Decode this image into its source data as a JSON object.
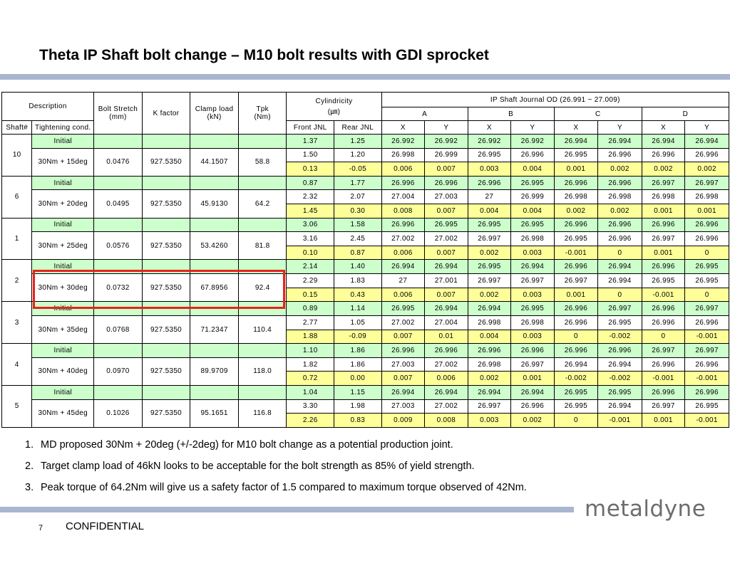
{
  "title": "Theta IP Shaft bolt change – M10 bolt results with GDI sprocket",
  "table": {
    "header": {
      "description": "Description",
      "bolt_stretch": "Bolt Stretch\n(mm)",
      "k_factor": "K factor",
      "clamp_load": "Clamp load\n(kN)",
      "tpk": "Tpk\n(Nm)",
      "cylindricity": "Cylindricity\n(㎛)",
      "journal_od": "IP Shaft Journal OD (26.991 ~ 27.009)",
      "journals": [
        "A",
        "B",
        "C",
        "D"
      ],
      "shaft_no": "Shaft#",
      "tightening_cond": "Tightening cond.",
      "front_jnl": "Front JNL",
      "rear_jnl": "Rear JNL",
      "xy": [
        "X",
        "Y",
        "X",
        "Y",
        "X",
        "Y",
        "X",
        "Y"
      ]
    },
    "groups": [
      {
        "shaft": "10",
        "initial": "Initial",
        "cond": "30Nm + 15deg",
        "stretch": "0.0476",
        "k": "927.5350",
        "clamp": "44.1507",
        "tpk": "58.8",
        "rows": [
          [
            "1.37",
            "1.25",
            "26.992",
            "26.992",
            "26.992",
            "26.992",
            "26.994",
            "26.994",
            "26.994",
            "26.994"
          ],
          [
            "1.50",
            "1.20",
            "26.998",
            "26.999",
            "26.995",
            "26.996",
            "26.995",
            "26.996",
            "26.996",
            "26.996"
          ],
          [
            "0.13",
            "-0.05",
            "0.006",
            "0.007",
            "0.003",
            "0.004",
            "0.001",
            "0.002",
            "0.002",
            "0.002"
          ]
        ]
      },
      {
        "shaft": "6",
        "initial": "Initial",
        "cond": "30Nm + 20deg",
        "stretch": "0.0495",
        "k": "927.5350",
        "clamp": "45.9130",
        "tpk": "64.2",
        "rows": [
          [
            "0.87",
            "1.77",
            "26.996",
            "26.996",
            "26.996",
            "26.995",
            "26.996",
            "26.996",
            "26.997",
            "26.997"
          ],
          [
            "2.32",
            "2.07",
            "27.004",
            "27.003",
            "27",
            "26.999",
            "26.998",
            "26.998",
            "26.998",
            "26.998"
          ],
          [
            "1.45",
            "0.30",
            "0.008",
            "0.007",
            "0.004",
            "0.004",
            "0.002",
            "0.002",
            "0.001",
            "0.001"
          ]
        ]
      },
      {
        "shaft": "1",
        "initial": "Initial",
        "cond": "30Nm + 25deg",
        "stretch": "0.0576",
        "k": "927.5350",
        "clamp": "53.4260",
        "tpk": "81.8",
        "rows": [
          [
            "3.06",
            "1.58",
            "26.996",
            "26.995",
            "26.995",
            "26.995",
            "26.996",
            "26.996",
            "26.996",
            "26.996"
          ],
          [
            "3.16",
            "2.45",
            "27.002",
            "27.002",
            "26.997",
            "26.998",
            "26.995",
            "26.996",
            "26.997",
            "26.996"
          ],
          [
            "0.10",
            "0.87",
            "0.006",
            "0.007",
            "0.002",
            "0.003",
            "-0.001",
            "0",
            "0.001",
            "0"
          ]
        ]
      },
      {
        "shaft": "2",
        "initial": "Initial",
        "cond": "30Nm + 30deg",
        "stretch": "0.0732",
        "k": "927.5350",
        "clamp": "67.8956",
        "tpk": "92.4",
        "rows": [
          [
            "2.14",
            "1.40",
            "26.994",
            "26.994",
            "26.995",
            "26.994",
            "26.996",
            "26.994",
            "26.996",
            "26.995"
          ],
          [
            "2.29",
            "1.83",
            "27",
            "27.001",
            "26.997",
            "26.997",
            "26.997",
            "26.994",
            "26.995",
            "26.995"
          ],
          [
            "0.15",
            "0.43",
            "0.006",
            "0.007",
            "0.002",
            "0.003",
            "0.001",
            "0",
            "-0.001",
            "0"
          ]
        ]
      },
      {
        "shaft": "3",
        "initial": "Initial",
        "cond": "30Nm + 35deg",
        "stretch": "0.0768",
        "k": "927.5350",
        "clamp": "71.2347",
        "tpk": "110.4",
        "rows": [
          [
            "0.89",
            "1.14",
            "26.995",
            "26.994",
            "26.994",
            "26.995",
            "26.996",
            "26.997",
            "26.996",
            "26.997"
          ],
          [
            "2.77",
            "1.05",
            "27.002",
            "27.004",
            "26.998",
            "26.998",
            "26.996",
            "26.995",
            "26.996",
            "26.996"
          ],
          [
            "1.88",
            "-0.09",
            "0.007",
            "0.01",
            "0.004",
            "0.003",
            "0",
            "-0.002",
            "0",
            "-0.001"
          ]
        ]
      },
      {
        "shaft": "4",
        "initial": "Initial",
        "cond": "30Nm + 40deg",
        "stretch": "0.0970",
        "k": "927.5350",
        "clamp": "89.9709",
        "tpk": "118.0",
        "rows": [
          [
            "1.10",
            "1.86",
            "26.996",
            "26.996",
            "26.996",
            "26.996",
            "26.996",
            "26.996",
            "26.997",
            "26.997"
          ],
          [
            "1.82",
            "1.86",
            "27.003",
            "27.002",
            "26.998",
            "26.997",
            "26.994",
            "26.994",
            "26.996",
            "26.996"
          ],
          [
            "0.72",
            "0.00",
            "0.007",
            "0.006",
            "0.002",
            "0.001",
            "-0.002",
            "-0.002",
            "-0.001",
            "-0.001"
          ]
        ]
      },
      {
        "shaft": "5",
        "initial": "Initial",
        "cond": "30Nm + 45deg",
        "stretch": "0.1026",
        "k": "927.5350",
        "clamp": "95.1651",
        "tpk": "116.8",
        "rows": [
          [
            "1.04",
            "1.15",
            "26.994",
            "26.994",
            "26.994",
            "26.994",
            "26.995",
            "26.995",
            "26.996",
            "26.996"
          ],
          [
            "3.30",
            "1.98",
            "27.003",
            "27.002",
            "26.997",
            "26.996",
            "26.995",
            "26.994",
            "26.997",
            "26.995"
          ],
          [
            "2.26",
            "0.83",
            "0.009",
            "0.008",
            "0.003",
            "0.002",
            "0",
            "-0.001",
            "0.001",
            "-0.001"
          ]
        ]
      }
    ],
    "row_colors": {
      "initial": "#ccffcc",
      "delta": "#ffff99",
      "highlight": "#e8221b"
    }
  },
  "notes": [
    {
      "num": "1.",
      "text": "MD proposed 30Nm + 20deg (+/-2deg) for M10 bolt change as a potential production joint."
    },
    {
      "num": "2.",
      "text": "Target clamp load of 46kN looks to be acceptable for the bolt strength as 85% of yield strength."
    },
    {
      "num": "3.",
      "text": "Peak torque of 64.2Nm will give us a safety factor of 1.5 compared to maximum torque observed of 42Nm."
    }
  ],
  "footer": {
    "logo": "metaldyne",
    "page_number": "7",
    "confidential": "CONFIDENTIAL"
  }
}
